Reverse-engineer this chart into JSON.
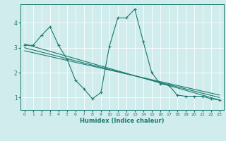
{
  "xlabel": "Humidex (Indice chaleur)",
  "ylabel": "",
  "bg_color": "#d0ecec",
  "line_color": "#1a7a6e",
  "grid_color": "#b8d8d8",
  "xlim": [
    -0.5,
    23.5
  ],
  "ylim": [
    0.5,
    4.75
  ],
  "xticks": [
    0,
    1,
    2,
    3,
    4,
    5,
    6,
    7,
    8,
    9,
    10,
    11,
    12,
    13,
    14,
    15,
    16,
    17,
    18,
    19,
    20,
    21,
    22,
    23
  ],
  "yticks": [
    1,
    2,
    3,
    4
  ],
  "line1_x": [
    0,
    1,
    2,
    3,
    4,
    5,
    6,
    7,
    8,
    9,
    10,
    11,
    12,
    13,
    14,
    15,
    16,
    17,
    18,
    19,
    20,
    21,
    22,
    23
  ],
  "line1_y": [
    3.1,
    3.1,
    3.5,
    3.85,
    3.1,
    2.55,
    1.7,
    1.35,
    0.95,
    1.2,
    3.05,
    4.2,
    4.2,
    4.55,
    3.25,
    2.0,
    1.55,
    1.5,
    1.1,
    1.05,
    1.05,
    1.05,
    0.95,
    0.9
  ],
  "line2_x": [
    0,
    23
  ],
  "line2_y": [
    3.15,
    0.9
  ],
  "line3_x": [
    0,
    23
  ],
  "line3_y": [
    3.0,
    1.0
  ],
  "line4_x": [
    0,
    23
  ],
  "line4_y": [
    2.88,
    1.1
  ]
}
